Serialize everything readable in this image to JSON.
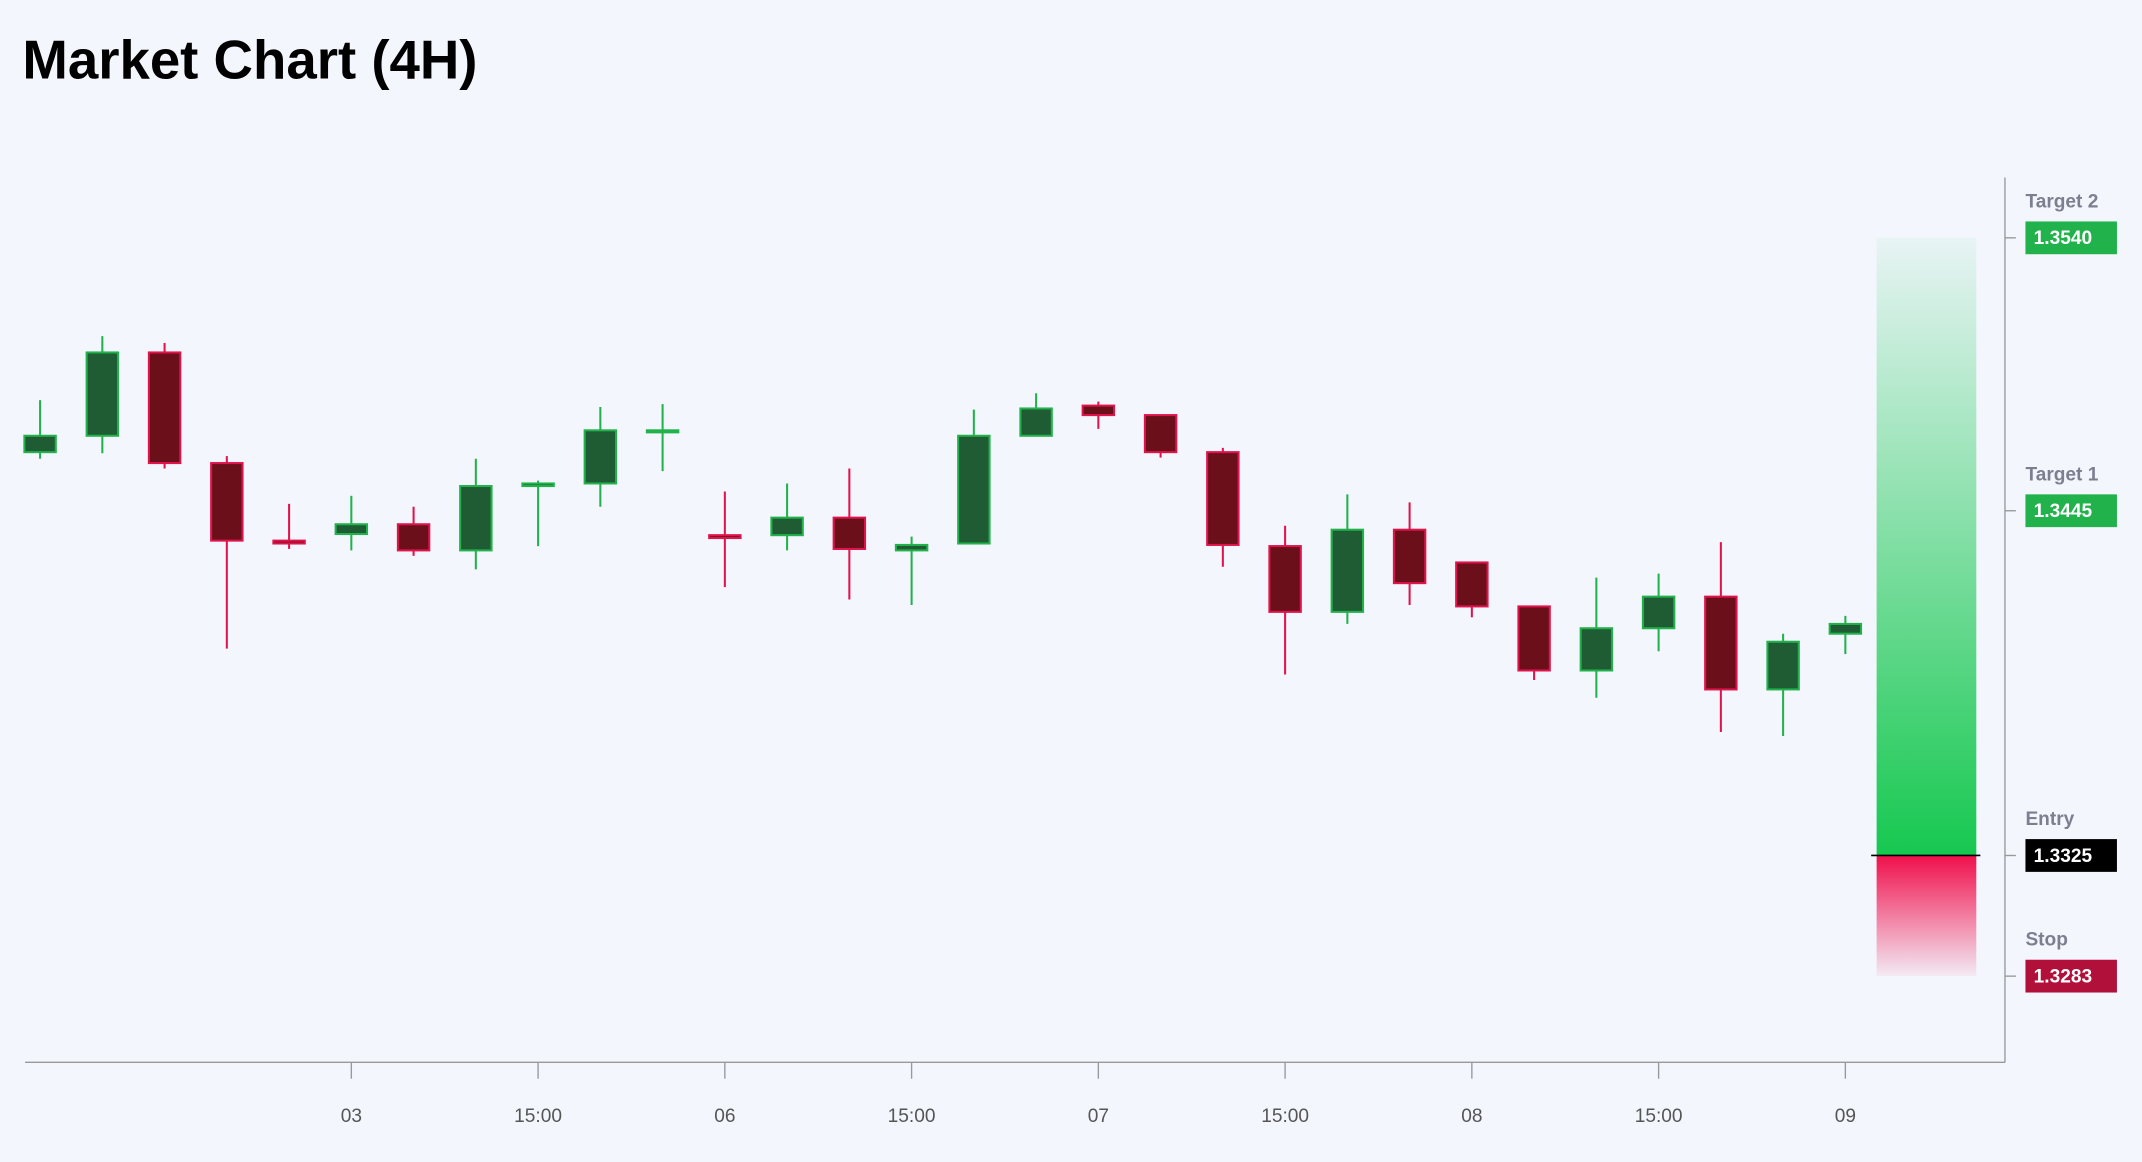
{
  "chart_data": {
    "type": "candlestick",
    "title": "Market Chart (4H)",
    "categories": [
      null,
      null,
      null,
      null,
      null,
      "03",
      null,
      null,
      "15:00",
      null,
      null,
      "06",
      null,
      null,
      "15:00",
      null,
      null,
      "07",
      null,
      null,
      "15:00",
      null,
      null,
      "08",
      null,
      null,
      "15:00",
      null,
      null,
      "09"
    ],
    "open": [
      1.34654,
      1.34711,
      1.35001,
      1.34616,
      1.34346,
      1.34369,
      1.34403,
      1.34312,
      1.34536,
      1.34545,
      1.34726,
      1.34365,
      1.34365,
      1.34426,
      1.34312,
      1.34336,
      1.34711,
      1.34816,
      1.34783,
      1.34654,
      1.34327,
      1.34098,
      1.34384,
      1.3427,
      1.34117,
      1.33894,
      1.34041,
      1.34151,
      1.33828,
      1.34022
    ],
    "high": [
      1.34835,
      1.35058,
      1.35034,
      1.3464,
      1.34474,
      1.34502,
      1.34464,
      1.34631,
      1.34555,
      1.34811,
      1.34821,
      1.34517,
      1.34545,
      1.34597,
      1.3436,
      1.34802,
      1.34859,
      1.3483,
      1.34783,
      1.34669,
      1.34398,
      1.34507,
      1.34479,
      1.3427,
      1.34117,
      1.34217,
      1.34231,
      1.34341,
      1.34022,
      1.34084
    ],
    "low": [
      1.34631,
      1.3465,
      1.34597,
      1.3397,
      1.34317,
      1.34312,
      1.34293,
      1.34246,
      1.34327,
      1.34464,
      1.34588,
      1.34184,
      1.34312,
      1.34141,
      1.34122,
      1.34336,
      1.34711,
      1.34735,
      1.34635,
      1.34255,
      1.3388,
      1.34056,
      1.34122,
      1.34079,
      1.33861,
      1.33799,
      1.33961,
      1.3368,
      1.33666,
      1.33951
    ],
    "close": [
      1.34711,
      1.35001,
      1.34616,
      1.34346,
      1.34336,
      1.34403,
      1.34312,
      1.34536,
      1.34545,
      1.3473,
      1.3473,
      1.34355,
      1.34426,
      1.34317,
      1.34331,
      1.34711,
      1.34806,
      1.34783,
      1.34654,
      1.34331,
      1.34098,
      1.34384,
      1.34198,
      1.34117,
      1.33894,
      1.34041,
      1.34151,
      1.33828,
      1.33994,
      1.34056
    ],
    "up_color": "#22b24c",
    "up_fill": "#1f5c33",
    "down_color": "#e0144c",
    "down_fill": "#6b0f1a",
    "ylim": [
      1.3253,
      1.3561
    ],
    "levels": {
      "names": [
        "Target 2",
        "Target 1",
        "Entry",
        "Stop"
      ],
      "values": [
        1.354,
        1.3445,
        1.3325,
        1.3283
      ],
      "value_labels": [
        "1.3540",
        "1.3445",
        "1.3325",
        "1.3283"
      ],
      "colors": [
        "#22b24c",
        "#22b24c",
        "#000000",
        "#b0103a"
      ]
    }
  }
}
